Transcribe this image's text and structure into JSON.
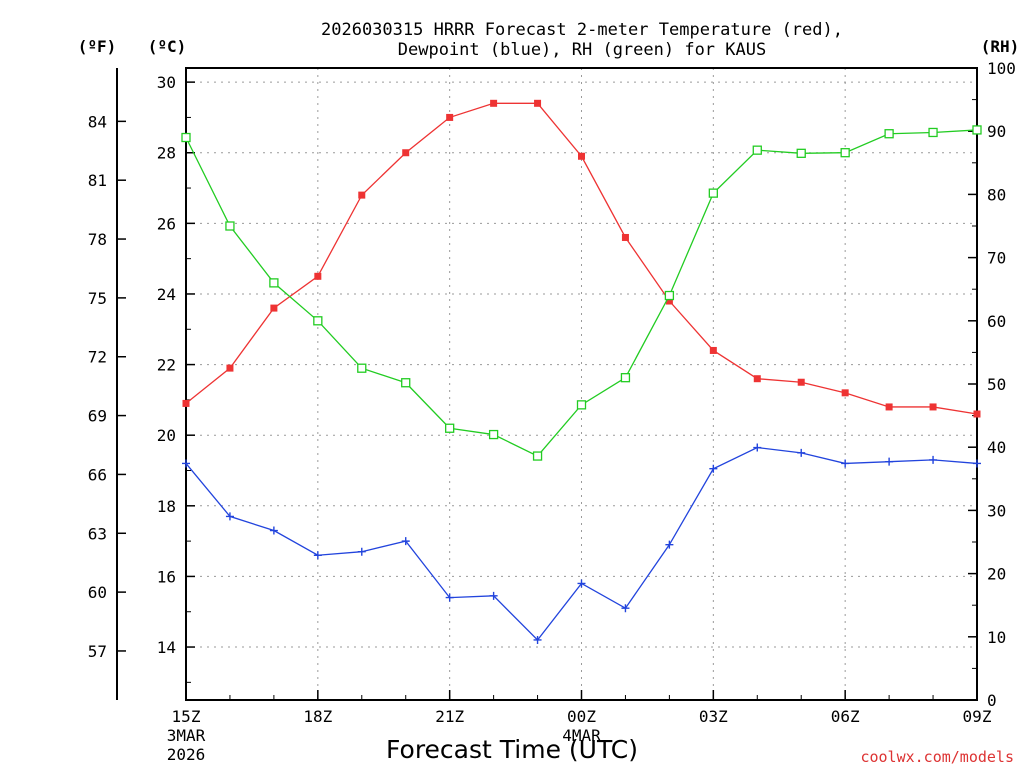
{
  "chart_data": {
    "type": "line",
    "title_line1": "2026030315 HRRR Forecast 2-meter Temperature (red),",
    "title_line2": "Dewpoint (blue), RH (green) for KAUS",
    "xlabel": "Forecast Time (UTC)",
    "credit": "coolwx.com/models",
    "y_left_c_label": "(ºC)",
    "y_left_f_label": "(ºF)",
    "y_right_label": "(RH)",
    "ylim_c": [
      12.5,
      30.4
    ],
    "ylim_rh": [
      0,
      100
    ],
    "celsius_ticks": [
      "14",
      "16",
      "18",
      "20",
      "22",
      "24",
      "26",
      "28",
      "30"
    ],
    "fahrenheit_ticks": [
      "57",
      "60",
      "63",
      "66",
      "69",
      "72",
      "75",
      "78",
      "81",
      "84"
    ],
    "rh_ticks": [
      "0",
      "10",
      "20",
      "30",
      "40",
      "50",
      "60",
      "70",
      "80",
      "90",
      "100"
    ],
    "hours": [
      0,
      1,
      2,
      3,
      4,
      5,
      6,
      7,
      8,
      9,
      10,
      11,
      12,
      13,
      14,
      15,
      16,
      17,
      18
    ],
    "x_ticks": [
      {
        "hour": 0,
        "label": "15Z",
        "sub1": "3MAR",
        "sub2": "2026"
      },
      {
        "hour": 3,
        "label": "18Z",
        "sub1": "",
        "sub2": ""
      },
      {
        "hour": 6,
        "label": "21Z",
        "sub1": "",
        "sub2": ""
      },
      {
        "hour": 9,
        "label": "00Z",
        "sub1": "4MAR",
        "sub2": ""
      },
      {
        "hour": 12,
        "label": "03Z",
        "sub1": "",
        "sub2": ""
      },
      {
        "hour": 15,
        "label": "06Z",
        "sub1": "",
        "sub2": ""
      },
      {
        "hour": 18,
        "label": "09Z",
        "sub1": "",
        "sub2": ""
      }
    ],
    "series": [
      {
        "name": "2-meter Temperature",
        "axis": "celsius",
        "color": "#ee3333",
        "marker": "filled-square",
        "values": [
          20.9,
          21.9,
          23.6,
          24.5,
          26.8,
          28.0,
          29.0,
          29.4,
          29.4,
          27.9,
          25.6,
          23.8,
          22.4,
          21.6,
          21.5,
          21.2,
          20.8,
          20.8,
          20.6
        ]
      },
      {
        "name": "Dewpoint",
        "axis": "celsius",
        "color": "#2244dd",
        "marker": "plus",
        "values": [
          19.2,
          17.7,
          17.3,
          16.6,
          16.7,
          17.0,
          15.4,
          15.45,
          14.2,
          15.8,
          15.1,
          16.9,
          19.05,
          19.65,
          19.5,
          19.2,
          19.25,
          19.3,
          19.2
        ]
      },
      {
        "name": "Relative Humidity",
        "axis": "rh",
        "color": "#22cc22",
        "marker": "open-square",
        "values": [
          89,
          75,
          66,
          60,
          52.5,
          50.2,
          43,
          42,
          38.6,
          46.7,
          51,
          64,
          80.2,
          87,
          86.5,
          86.6,
          89.6,
          89.8,
          90.2
        ]
      }
    ]
  }
}
